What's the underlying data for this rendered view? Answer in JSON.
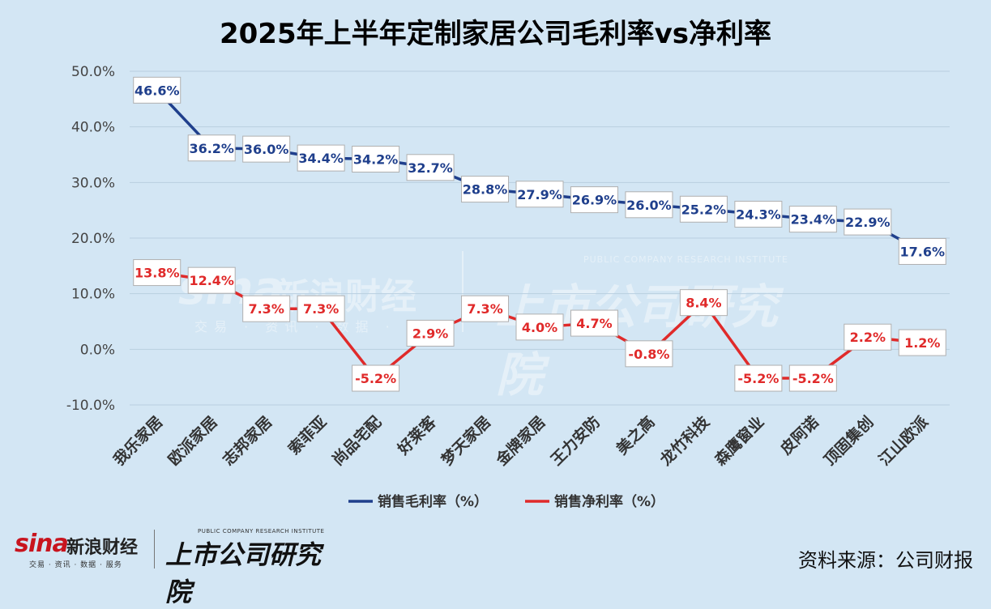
{
  "chart_data": {
    "type": "line",
    "title": "2025年上半年定制家居公司毛利率vs净利率",
    "categories": [
      "我乐家居",
      "欧派家居",
      "志邦家居",
      "索菲亚",
      "尚品宅配",
      "好莱客",
      "梦天家居",
      "金牌家居",
      "王力安防",
      "美之高",
      "龙竹科技",
      "森鹰窗业",
      "皮阿诺",
      "顶固集创",
      "江山欧派"
    ],
    "series": [
      {
        "name": "销售毛利率（%）",
        "color": "#1f3f8c",
        "values": [
          46.6,
          36.2,
          36.0,
          34.4,
          34.2,
          32.7,
          28.8,
          27.9,
          26.9,
          26.0,
          25.2,
          24.3,
          23.4,
          22.9,
          17.6
        ]
      },
      {
        "name": "销售净利率（%）",
        "color": "#e02a2a",
        "values": [
          13.8,
          12.4,
          7.3,
          7.3,
          -5.2,
          2.9,
          7.3,
          4.0,
          4.7,
          -0.8,
          8.4,
          -5.2,
          -5.2,
          2.2,
          1.2
        ]
      }
    ],
    "y_ticks": [
      "50.0%",
      "40.0%",
      "30.0%",
      "20.0%",
      "10.0%",
      "0.0%",
      "-10.0%"
    ],
    "ylim": [
      -10,
      50
    ],
    "legend_position": "bottom",
    "grid": true
  },
  "source_text": "资料来源：公司财报",
  "logo": {
    "sina": "sina",
    "xinlang": "新浪财经",
    "sub": "交易 · 资讯 · 数据 · 服务",
    "shangshi": "上市公司研究院",
    "english": "PUBLIC COMPANY RESEARCH INSTITUTE"
  },
  "colors": {
    "background": "#d3e6f4",
    "gross": "#1f3f8c",
    "net": "#e02a2a",
    "grid": "#b9cfe0"
  }
}
